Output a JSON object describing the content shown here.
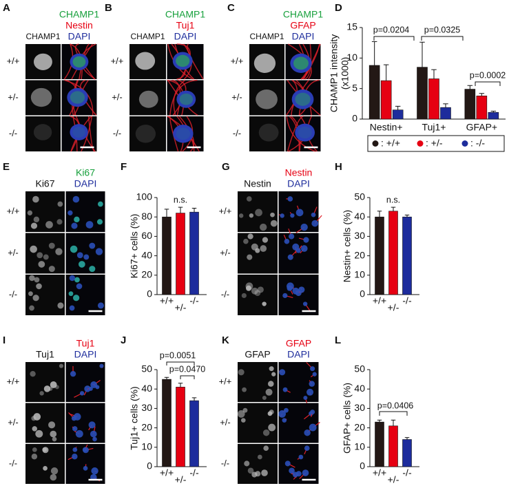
{
  "image_panels": [
    {
      "letter": "A",
      "single_label": "CHAMP1",
      "merge_labels": [
        "CHAMP1",
        "Nestin",
        "DAPI"
      ],
      "merge_colors": [
        "#17a03c",
        "#e60012",
        "#1d2c9c"
      ],
      "rows": [
        "+/+",
        "+/-",
        "-/-"
      ]
    },
    {
      "letter": "B",
      "single_label": "CHAMP1",
      "merge_labels": [
        "CHAMP1",
        "Tuj1",
        "DAPI"
      ],
      "merge_colors": [
        "#17a03c",
        "#e60012",
        "#1d2c9c"
      ],
      "rows": [
        "+/+",
        "+/-",
        "-/-"
      ]
    },
    {
      "letter": "C",
      "single_label": "CHAMP1",
      "merge_labels": [
        "CHAMP1",
        "GFAP",
        "DAPI"
      ],
      "merge_colors": [
        "#17a03c",
        "#e60012",
        "#1d2c9c"
      ],
      "rows": [
        "+/+",
        "+/-",
        "-/-"
      ]
    },
    {
      "letter": "E",
      "single_label": "Ki67",
      "merge_labels": [
        "Ki67",
        "DAPI"
      ],
      "merge_colors": [
        "#17a03c",
        "#1d2c9c"
      ],
      "rows": [
        "+/+",
        "+/-",
        "-/-"
      ]
    },
    {
      "letter": "G",
      "single_label": "Nestin",
      "merge_labels": [
        "Nestin",
        "DAPI"
      ],
      "merge_colors": [
        "#e60012",
        "#1d2c9c"
      ],
      "rows": [
        "+/+",
        "+/-",
        "-/-"
      ]
    },
    {
      "letter": "I",
      "single_label": "Tuj1",
      "merge_labels": [
        "Tuj1",
        "DAPI"
      ],
      "merge_colors": [
        "#e60012",
        "#1d2c9c"
      ],
      "rows": [
        "+/+",
        "+/-",
        "-/-"
      ]
    },
    {
      "letter": "K",
      "single_label": "GFAP",
      "merge_labels": [
        "GFAP",
        "DAPI"
      ],
      "merge_colors": [
        "#e60012",
        "#1d2c9c"
      ],
      "rows": [
        "+/+",
        "+/-",
        "-/-"
      ]
    }
  ],
  "chart_data": [
    {
      "type": "grouped_bar",
      "letter": "D",
      "ylabel": [
        "CHAMP1 intensity",
        "(x1000)"
      ],
      "categories": [
        "Nestin+",
        "Tuj1+",
        "GFAP+"
      ],
      "series": [
        {
          "name": ": +/+",
          "color": "#231815",
          "values": [
            8.8,
            8.5,
            4.9
          ],
          "errors": [
            3.9,
            4.1,
            0.6
          ]
        },
        {
          "name": ": +/-",
          "color": "#e60012",
          "values": [
            6.3,
            6.6,
            3.8
          ],
          "errors": [
            2.6,
            1.5,
            0.4
          ]
        },
        {
          "name": ": -/-",
          "color": "#1d2c9c",
          "values": [
            1.5,
            1.9,
            1.1
          ],
          "errors": [
            0.6,
            0.6,
            0.2
          ]
        }
      ],
      "ylim": [
        0,
        15
      ],
      "yticks": [
        0,
        5,
        10,
        15
      ],
      "annotations": [
        "p=0.0204",
        "p=0.0325",
        "p=0.0002"
      ]
    },
    {
      "type": "bar",
      "letter": "F",
      "ylabel": [
        "Ki67+ cells (%)"
      ],
      "categories": [
        "+/+",
        "+/-",
        "-/-"
      ],
      "values": [
        80,
        84,
        85
      ],
      "errors": [
        8,
        6,
        4
      ],
      "colors": [
        "#231815",
        "#e60012",
        "#1d2c9c"
      ],
      "ylim": [
        0,
        100
      ],
      "yticks": [
        0,
        20,
        40,
        60,
        80,
        100
      ],
      "annotations": [
        "n.s."
      ]
    },
    {
      "type": "bar",
      "letter": "H",
      "ylabel": [
        "Nestin+ cells (%)"
      ],
      "categories": [
        "+/+",
        "+/-",
        "-/-"
      ],
      "values": [
        40,
        43,
        40
      ],
      "errors": [
        3,
        2,
        1
      ],
      "colors": [
        "#231815",
        "#e60012",
        "#1d2c9c"
      ],
      "ylim": [
        0,
        50
      ],
      "yticks": [
        0,
        10,
        20,
        30,
        40,
        50
      ],
      "annotations": [
        "n.s."
      ]
    },
    {
      "type": "bar",
      "letter": "J",
      "ylabel": [
        "Tuj1+ cells (%)"
      ],
      "categories": [
        "+/+",
        "+/-",
        "-/-"
      ],
      "values": [
        45,
        41,
        34
      ],
      "errors": [
        1,
        2,
        1.5
      ],
      "colors": [
        "#231815",
        "#e60012",
        "#1d2c9c"
      ],
      "ylim": [
        0,
        50
      ],
      "yticks": [
        0,
        10,
        20,
        30,
        40,
        50
      ],
      "annotations": [
        "p=0.0051",
        "p=0.0470"
      ]
    },
    {
      "type": "bar",
      "letter": "L",
      "ylabel": [
        "GFAP+ cells (%)"
      ],
      "categories": [
        "+/+",
        "+/-",
        "-/-"
      ],
      "values": [
        23,
        21,
        14
      ],
      "errors": [
        1,
        3,
        1
      ],
      "colors": [
        "#231815",
        "#e60012",
        "#1d2c9c"
      ],
      "ylim": [
        0,
        50
      ],
      "yticks": [
        0,
        10,
        20,
        30,
        40,
        50
      ],
      "annotations": [
        "p=0.0406"
      ]
    }
  ]
}
